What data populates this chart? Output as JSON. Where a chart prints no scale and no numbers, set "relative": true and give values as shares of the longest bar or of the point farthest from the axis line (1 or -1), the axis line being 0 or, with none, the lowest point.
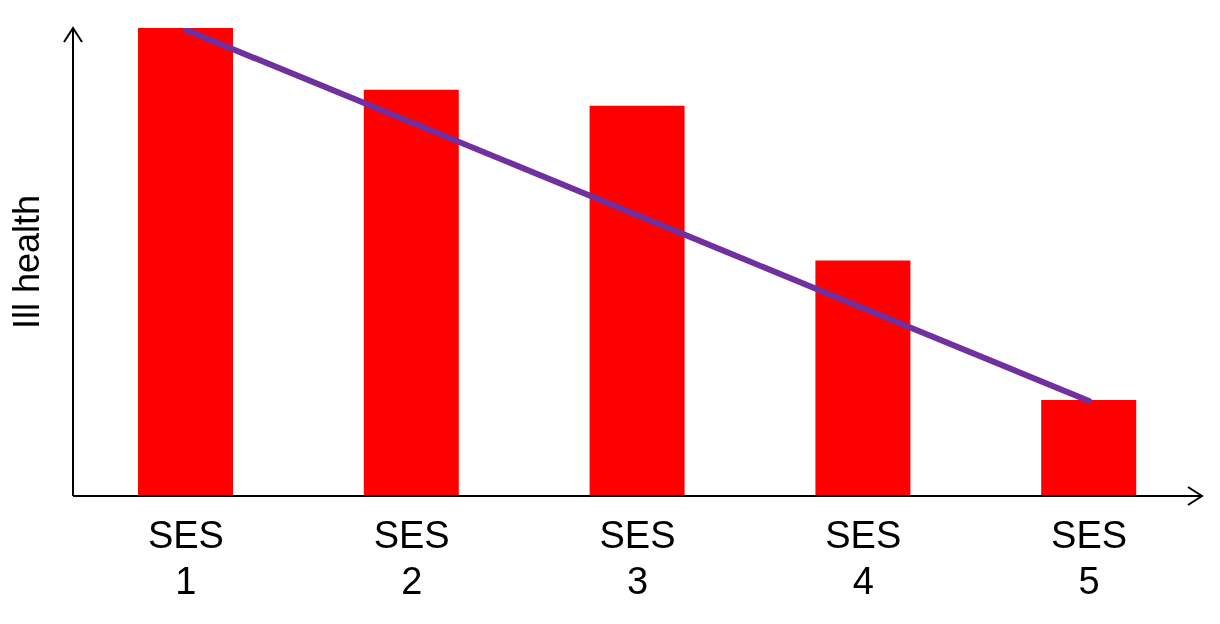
{
  "chart_data": {
    "type": "bar",
    "ylabel": "Ill health",
    "relative": true,
    "categories": [
      "SES 1",
      "SES 2",
      "SES 3",
      "SES 4",
      "SES 5"
    ],
    "series": [
      {
        "color": "#ff0000",
        "values": [
          1,
          0.868,
          0.834,
          0.503,
          0.205
        ]
      },
      {
        "type": "line",
        "color": "#7030a0",
        "values": [
          0.996,
          0.798,
          0.6,
          0.401,
          0.203
        ]
      }
    ],
    "grid": false,
    "legend": false,
    "marker": "none",
    "line_style": "solid"
  }
}
